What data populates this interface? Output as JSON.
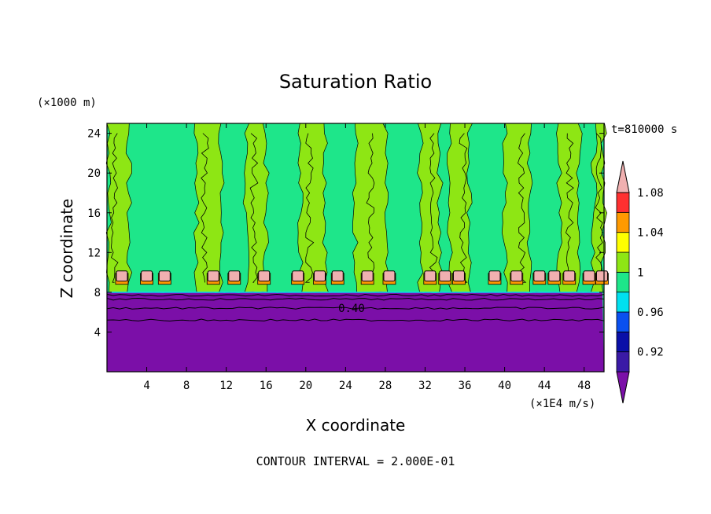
{
  "chart_data": {
    "type": "heatmap",
    "title": "Saturation Ratio",
    "xlabel": "X coordinate",
    "ylabel": "Z coordinate",
    "x_unit": "(×1E4 m/s)",
    "y_unit": "(×1000 m)",
    "time_label": "t=810000 s",
    "footer": "CONTOUR INTERVAL = 2.000E-01",
    "contour_label": "0.40",
    "xlim": [
      0,
      50
    ],
    "ylim": [
      0,
      25
    ],
    "x_ticks": [
      4,
      8,
      12,
      16,
      20,
      24,
      28,
      32,
      36,
      40,
      44,
      48
    ],
    "y_ticks": [
      4,
      8,
      12,
      16,
      20,
      24
    ],
    "colorbar": {
      "levels": [
        {
          "upper": 0.9,
          "color": "#7b0fa8"
        },
        {
          "upper": 0.92,
          "color": "#3a1aa6"
        },
        {
          "upper": 0.94,
          "color": "#0a0fa8"
        },
        {
          "upper": 0.96,
          "color": "#0a50f0"
        },
        {
          "upper": 0.98,
          "color": "#00e0f0"
        },
        {
          "upper": 1.0,
          "color": "#1ee68a"
        },
        {
          "upper": 1.02,
          "color": "#8ee614"
        },
        {
          "upper": 1.04,
          "color": "#ffff00"
        },
        {
          "upper": 1.06,
          "color": "#ff9a00"
        },
        {
          "upper": 1.08,
          "color": "#ff3030"
        },
        {
          "upper": 1.1,
          "color": "#f0b0b0"
        }
      ],
      "labels": [
        "0.92",
        "0.96",
        "1",
        "1.04",
        "1.08"
      ]
    },
    "regions": {
      "dry_layer_top_km": 8,
      "dry_value": 0.4,
      "upper_bands_x": [
        [
          0.2,
          2.2
        ],
        [
          9,
          11.5
        ],
        [
          14,
          16
        ],
        [
          19.5,
          22
        ],
        [
          25,
          28
        ],
        [
          31.5,
          33.5
        ],
        [
          34.5,
          36.5
        ],
        [
          40,
          42.5
        ],
        [
          45.5,
          47.5
        ],
        [
          49,
          50
        ]
      ],
      "supersaturated_cells_x": [
        1.5,
        4,
        5.8,
        10.7,
        12.8,
        15.8,
        19.2,
        21.4,
        23.2,
        26.2,
        28.4,
        32.5,
        34,
        35.4,
        39,
        41.2,
        43.5,
        45,
        46.5,
        48.5,
        49.8
      ]
    }
  }
}
